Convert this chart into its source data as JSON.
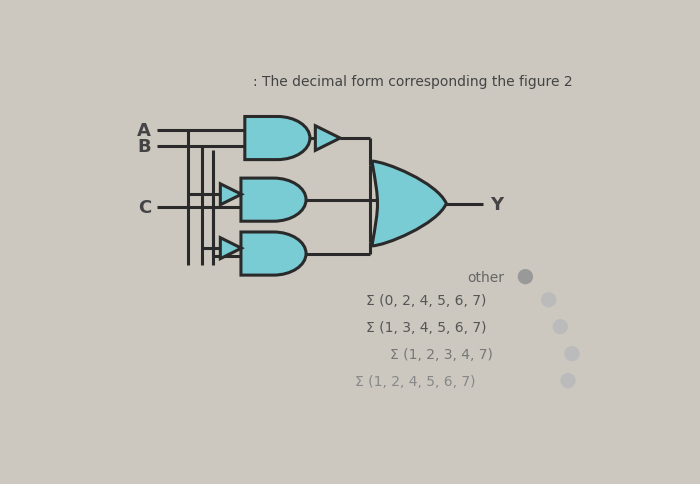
{
  "title": ": The decimal form corresponding the figure 2",
  "title_fontsize": 10,
  "bg_color": "#ccc8c0",
  "gate_color": "#7accd4",
  "wire_color": "#2a2a2a",
  "text_color": "#444444",
  "label_A": "A",
  "label_B": "B",
  "label_C": "C",
  "label_Y": "Y",
  "options": [
    "other",
    "Σ (0, 2, 4, 5, 6, 7)",
    "Σ (1, 3, 4, 5, 6, 7)",
    "Σ (1, 2, 3, 4, 7)",
    "Σ (1, 2, 4, 5, 6, 7)"
  ],
  "radio_colors": [
    "#999999",
    "#bbbbbb",
    "#bbbbbb",
    "#bbbbbb",
    "#bbbbbb"
  ],
  "figwidth": 7.0,
  "figheight": 4.85,
  "dpi": 100
}
